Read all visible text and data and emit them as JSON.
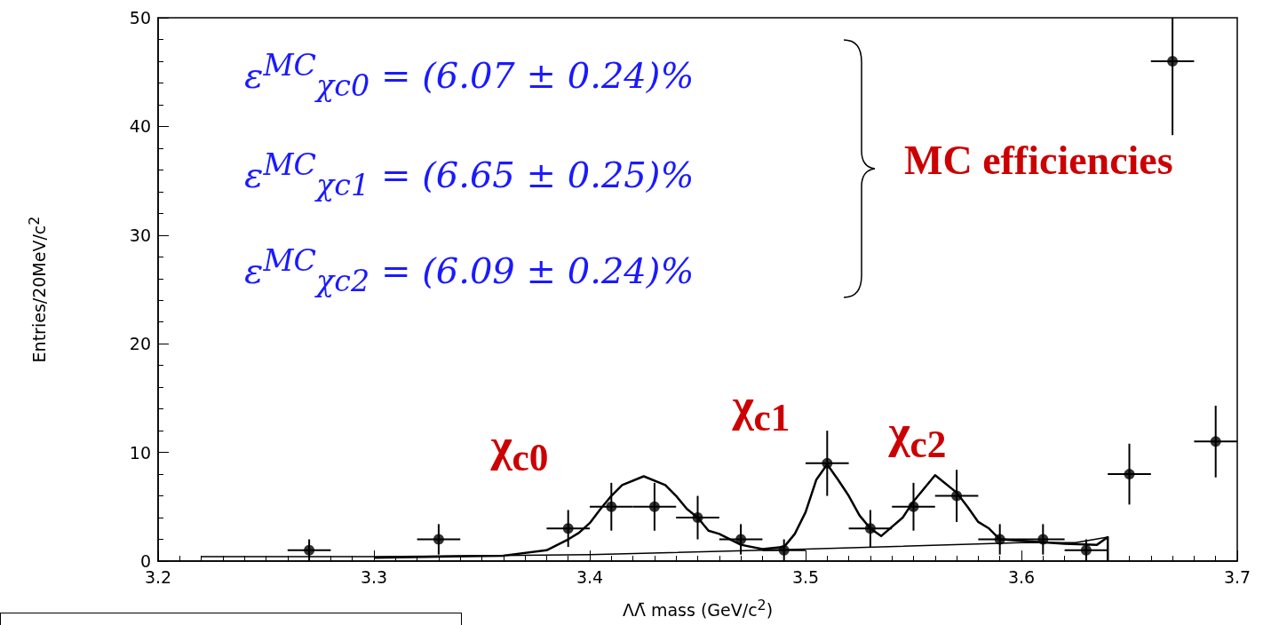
{
  "chart_data": {
    "type": "scatter",
    "xlabel": "ΛΛ̄ mass (GeV/c$^{2}$)",
    "ylabel": "Entries/20MeV/c$^{2}$",
    "xlim": [
      3.2,
      3.7
    ],
    "xticks": [
      3.2,
      3.3,
      3.4,
      3.5,
      3.6,
      3.7
    ],
    "ylim": [
      0,
      50
    ],
    "yticks": [
      0,
      10,
      20,
      30,
      40,
      50
    ],
    "grid": false,
    "marker": "circle",
    "series": [
      {
        "color": "#000000",
        "x": [
          3.27,
          3.33,
          3.39,
          3.41,
          3.43,
          3.45,
          3.47,
          3.49,
          3.51,
          3.53,
          3.55,
          3.57,
          3.59,
          3.61,
          3.63,
          3.65,
          3.67,
          3.69
        ],
        "values": [
          1,
          2,
          3,
          5,
          5,
          4,
          2,
          1,
          9,
          3,
          5,
          6,
          2,
          2,
          1,
          8,
          46,
          11
        ],
        "errors": [
          1,
          1.4,
          1.7,
          2.2,
          2.2,
          2,
          1.4,
          1,
          3,
          1.7,
          2.2,
          2.4,
          1.4,
          1.4,
          1,
          2.8,
          [
            39.2,
            50
          ],
          3.3
        ],
        "xerrors": [
          0.01,
          0.01,
          0.01,
          0.01,
          0.01,
          0.01,
          0.01,
          0.01,
          0.01,
          0.01,
          0.01,
          0.01,
          0.01,
          0.01,
          0.01,
          0.01,
          0.01,
          0.01
        ]
      },
      {
        "type": "line",
        "color": "#000000",
        "marker": "none",
        "x": [
          3.3,
          3.36,
          3.38,
          3.39,
          3.395,
          3.4,
          3.405,
          3.41,
          3.415,
          3.425,
          3.435,
          3.44,
          3.445,
          3.45,
          3.455,
          3.46,
          3.47,
          3.48,
          3.49,
          3.495,
          3.5,
          3.505,
          3.51,
          3.515,
          3.52,
          3.525,
          3.53,
          3.535,
          3.545,
          3.55,
          3.56,
          3.57,
          3.575,
          3.58,
          3.585,
          3.59,
          3.62,
          3.635,
          3.64,
          3.64
        ],
        "values": [
          0.3,
          0.5,
          1,
          2,
          2.6,
          3.5,
          4.8,
          6,
          7,
          7.8,
          7,
          6,
          4.8,
          4,
          2.8,
          2.5,
          1.5,
          1.1,
          1.3,
          2.5,
          4.5,
          7.5,
          8.9,
          7.5,
          6,
          4.2,
          3,
          2.3,
          4,
          5.5,
          7.9,
          6.3,
          5,
          3.6,
          3,
          2,
          1.6,
          1.5,
          2.2,
          0
        ]
      },
      {
        "type": "line",
        "color": "#000000",
        "marker": "none",
        "x": [
          3.22,
          3.3,
          3.4,
          3.5,
          3.6,
          3.625,
          3.64,
          3.64
        ],
        "values": [
          0.4,
          0.4,
          0.6,
          1.1,
          1.7,
          1.7,
          2.2,
          0
        ]
      }
    ],
    "annotations": [
      "ε$^{MC}$$_{χc0}$ = (6.07 ± 0.24)%",
      "ε$^{MC}$$_{χc1}$ = (6.65 ± 0.25)%",
      "ε$^{MC}$$_{χc2}$ = (6.09 ± 0.24)%",
      "MC efficiencies",
      "χ$_{c0}$",
      "χ$_{c1}$",
      "χ$_{c2}$"
    ]
  }
}
